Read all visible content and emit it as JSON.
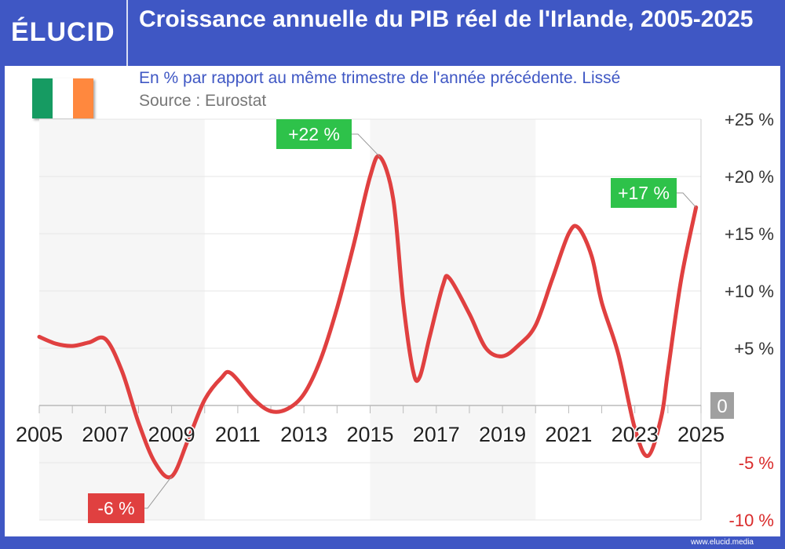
{
  "logo": "ÉLUCID",
  "title": "Croissance annuelle du PIB réel de l'Irlande, 2005-2025",
  "subtitle": "En % par rapport au même trimestre de l'année précédente. Lissé",
  "source": "Source : Eurostat",
  "credit": "www.elucid.media",
  "flag_colors": [
    "#169b62",
    "#ffffff",
    "#ff883e"
  ],
  "colors": {
    "header": "#3f57c4",
    "line": "#e04040",
    "positive_label": "#2ec24a",
    "negative_label": "#e04040",
    "zero_label": "#a0a0a0"
  },
  "chart_data": {
    "type": "line",
    "xlim": [
      2005,
      2025
    ],
    "ylim": [
      -10,
      25
    ],
    "x_ticks": [
      "2005",
      "2007",
      "2009",
      "2011",
      "2013",
      "2015",
      "2017",
      "2019",
      "2021",
      "2023",
      "2025"
    ],
    "y_ticks": [
      {
        "v": 25,
        "label": "+25 %"
      },
      {
        "v": 20,
        "label": "+20 %"
      },
      {
        "v": 15,
        "label": "+15 %"
      },
      {
        "v": 10,
        "label": "+10 %"
      },
      {
        "v": 5,
        "label": "+5 %"
      },
      {
        "v": 0,
        "label": "0"
      },
      {
        "v": -5,
        "label": "-5 %"
      },
      {
        "v": -10,
        "label": "-10 %"
      }
    ],
    "shaded_periods": [
      [
        2005,
        2010
      ],
      [
        2015,
        2020
      ]
    ],
    "grid": true,
    "series": [
      {
        "points": [
          [
            2005,
            6.0
          ],
          [
            2005.5,
            5.4
          ],
          [
            2006,
            5.2
          ],
          [
            2006.5,
            5.5
          ],
          [
            2007,
            5.8
          ],
          [
            2007.5,
            3.0
          ],
          [
            2008,
            -1.5
          ],
          [
            2008.5,
            -5.0
          ],
          [
            2009,
            -6.2
          ],
          [
            2009.5,
            -3.0
          ],
          [
            2010,
            0.5
          ],
          [
            2010.5,
            2.4
          ],
          [
            2010.8,
            2.8
          ],
          [
            2011.5,
            0.5
          ],
          [
            2012,
            -0.5
          ],
          [
            2012.5,
            -0.3
          ],
          [
            2013,
            1.0
          ],
          [
            2013.5,
            4.0
          ],
          [
            2014,
            8.5
          ],
          [
            2014.5,
            14.0
          ],
          [
            2015,
            20.0
          ],
          [
            2015.3,
            21.7
          ],
          [
            2015.7,
            18.0
          ],
          [
            2016,
            9.0
          ],
          [
            2016.3,
            3.0
          ],
          [
            2016.5,
            2.5
          ],
          [
            2016.8,
            6.0
          ],
          [
            2017.2,
            10.5
          ],
          [
            2017.4,
            11.1
          ],
          [
            2018,
            8.0
          ],
          [
            2018.5,
            5.0
          ],
          [
            2019,
            4.3
          ],
          [
            2019.5,
            5.3
          ],
          [
            2020,
            7.0
          ],
          [
            2020.5,
            11.0
          ],
          [
            2021,
            15.0
          ],
          [
            2021.3,
            15.5
          ],
          [
            2021.7,
            13.0
          ],
          [
            2022,
            9.0
          ],
          [
            2022.5,
            4.5
          ],
          [
            2023,
            -2.0
          ],
          [
            2023.4,
            -4.4
          ],
          [
            2023.8,
            -1.0
          ],
          [
            2024,
            3.0
          ],
          [
            2024.4,
            11.0
          ],
          [
            2024.85,
            17.3
          ]
        ]
      }
    ],
    "annotations": [
      {
        "text": "+22 %",
        "x": 2015.3,
        "y": 21.7,
        "kind": "positive"
      },
      {
        "text": "+17 %",
        "x": 2024.85,
        "y": 17.3,
        "kind": "positive"
      },
      {
        "text": "-6 %",
        "x": 2009,
        "y": -6.2,
        "kind": "negative"
      }
    ]
  }
}
